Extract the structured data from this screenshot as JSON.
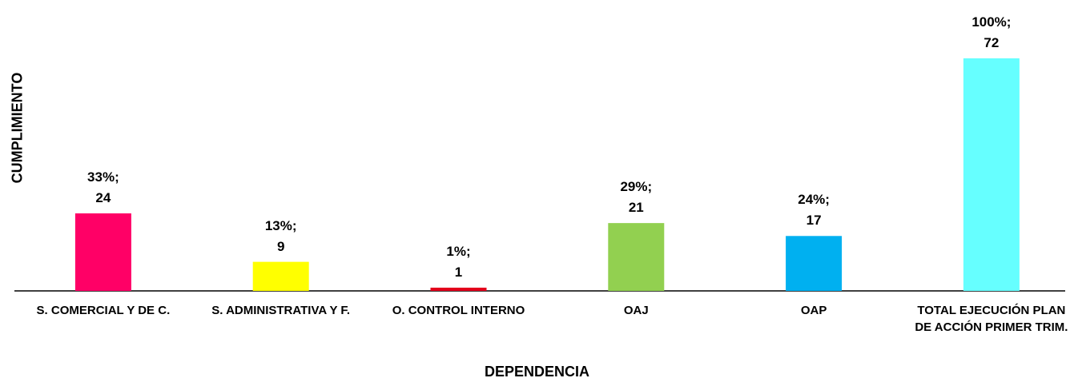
{
  "chart_data": {
    "type": "bar",
    "x_label": "DEPENDENCIA",
    "y_label": "CUMPLIMIENTO",
    "categories": [
      "S. COMERCIAL Y DE C.",
      "S. ADMINISTRATIVA Y F.",
      "O. CONTROL INTERNO",
      "OAJ",
      "OAP",
      "TOTAL EJECUCIÓN PLAN DE ACCIÓN PRIMER TRIM."
    ],
    "values": [
      24,
      9,
      1,
      21,
      17,
      72
    ],
    "value_labels": [
      "33%; 24",
      "13%; 9",
      "1%; 1",
      "29%; 21",
      "24%; 17",
      "100%; 72"
    ],
    "colors": [
      "#ff0066",
      "#ffff00",
      "#e3001b",
      "#92d050",
      "#00b0f0",
      "#66ffff"
    ]
  }
}
